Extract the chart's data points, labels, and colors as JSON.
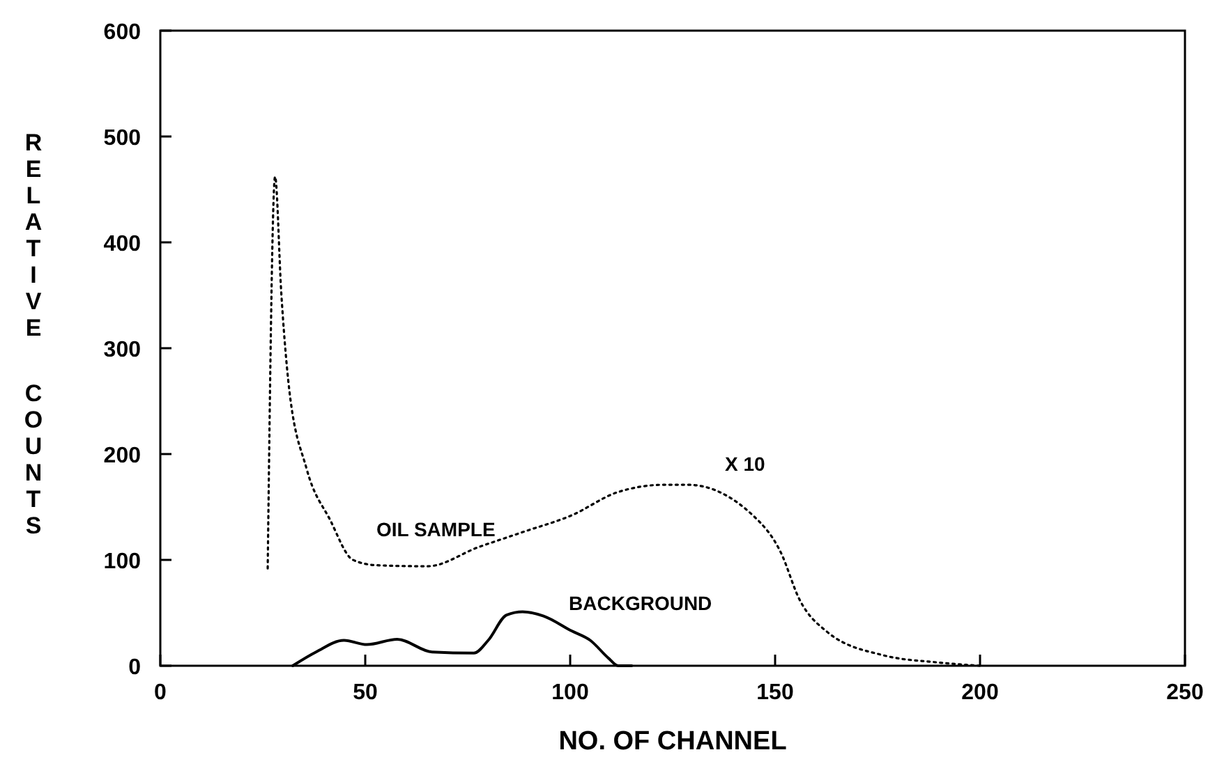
{
  "chart_data": {
    "type": "line",
    "xlabel": "NO. OF CHANNEL",
    "ylabel": "RELATIVE COUNTS",
    "xlim": [
      0,
      250
    ],
    "ylim": [
      0,
      600
    ],
    "xticks": [
      0,
      50,
      100,
      150,
      200,
      250
    ],
    "yticks": [
      0,
      100,
      200,
      300,
      400,
      500,
      600
    ],
    "grid": false,
    "annotations": [
      "X 10"
    ],
    "series": [
      {
        "name": "OIL SAMPLE",
        "color": "#000000",
        "line_style": "dotted",
        "x": [
          26.2,
          28,
          29.5,
          31.2,
          35.7,
          41.4,
          47,
          52.7,
          65.2,
          77.6,
          89,
          100.3,
          111.6,
          123,
          128.7,
          144.6,
          151.4,
          155.9,
          162.7,
          176.3,
          190,
          200
        ],
        "values": [
          92,
          462,
          353,
          270,
          186,
          138,
          100,
          95,
          94,
          112,
          127,
          142,
          164,
          171,
          171,
          142,
          107,
          63,
          32,
          10,
          3,
          0
        ]
      },
      {
        "name": "BACKGROUND",
        "color": "#000000",
        "line_style": "solid",
        "x": [
          32.3,
          38,
          44.8,
          50.4,
          57.8,
          66.3,
          76.5,
          80,
          84.5,
          88.4,
          93.5,
          100.3,
          104.9,
          109.4,
          111.7,
          115
        ],
        "values": [
          0,
          13,
          24,
          20,
          25,
          13,
          12,
          24,
          48,
          51,
          47,
          33,
          24,
          7,
          0,
          0
        ]
      }
    ]
  }
}
